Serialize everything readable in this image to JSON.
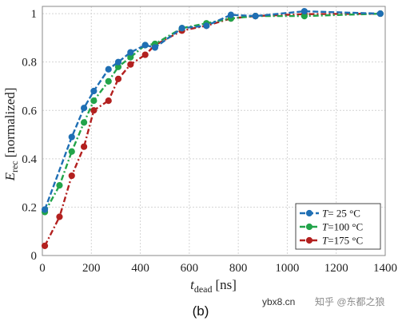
{
  "chart_data": {
    "type": "line",
    "title": "",
    "xlabel": {
      "symbol": "t",
      "subscript": "dead",
      "unit": "[ns]"
    },
    "ylabel": {
      "symbol": "E",
      "subscript": "rec",
      "unit": "[normalized]"
    },
    "xlim": [
      0,
      1400
    ],
    "ylim": [
      0,
      1.03
    ],
    "x_ticks": [
      0,
      200,
      400,
      600,
      800,
      1000,
      1200,
      1400
    ],
    "y_ticks": [
      0,
      0.2,
      0.4,
      0.6,
      0.8,
      1
    ],
    "grid": true,
    "legend_position": "bottom-right",
    "series": [
      {
        "legend_symbol": "T",
        "legend_text": "= 25 °C",
        "color": "#1f6fb4",
        "line_style": "dashed",
        "marker": "circle",
        "x": [
          10,
          120,
          170,
          210,
          270,
          310,
          360,
          420,
          460,
          570,
          670,
          770,
          870,
          1070,
          1380
        ],
        "y": [
          0.19,
          0.49,
          0.61,
          0.68,
          0.77,
          0.8,
          0.84,
          0.87,
          0.86,
          0.94,
          0.95,
          0.995,
          0.99,
          1.01,
          1.0
        ]
      },
      {
        "legend_symbol": "T",
        "legend_text": "=100 °C",
        "color": "#22a44a",
        "line_style": "dashdot",
        "marker": "circle",
        "x": [
          10,
          70,
          120,
          170,
          210,
          270,
          310,
          360,
          420,
          460,
          570,
          670,
          770,
          870,
          1070,
          1380
        ],
        "y": [
          0.18,
          0.29,
          0.43,
          0.55,
          0.64,
          0.72,
          0.78,
          0.82,
          0.87,
          0.875,
          0.94,
          0.96,
          0.98,
          0.99,
          0.99,
          1.0
        ]
      },
      {
        "legend_symbol": "T",
        "legend_text": "=175 °C",
        "color": "#b3201f",
        "line_style": "dashdot",
        "marker": "circle",
        "x": [
          10,
          70,
          120,
          170,
          210,
          270,
          310,
          360,
          420,
          460,
          570,
          670,
          770,
          870,
          1070,
          1380
        ],
        "y": [
          0.04,
          0.16,
          0.33,
          0.45,
          0.6,
          0.64,
          0.73,
          0.79,
          0.83,
          0.87,
          0.93,
          0.95,
          0.98,
          0.99,
          0.998,
          1.0
        ]
      }
    ]
  },
  "caption": "(b)",
  "watermark": {
    "site": "ybx8.cn",
    "author": "知乎 @东都之狼"
  }
}
